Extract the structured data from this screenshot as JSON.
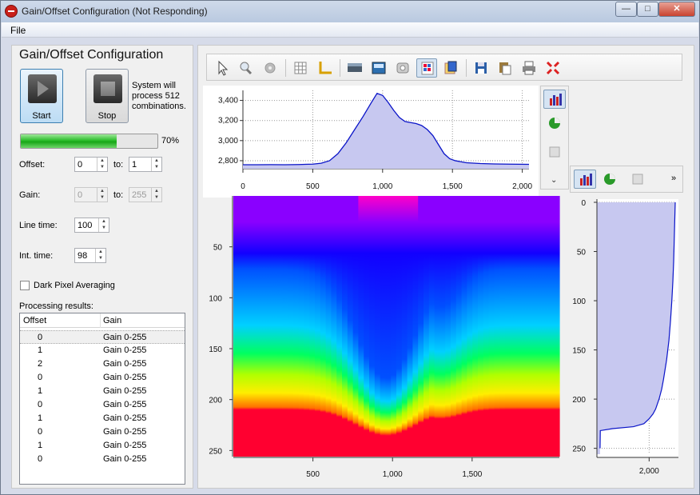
{
  "window": {
    "title": "Gain/Offset Configuration (Not Responding)",
    "min": "—",
    "max": "□",
    "close": "✕"
  },
  "menu": {
    "file": "File"
  },
  "panel": {
    "title": "Gain/Offset Configuration",
    "start_label": "Start",
    "stop_label": "Stop",
    "system_note": "System will process 512 combinations.",
    "progress_percent": 70,
    "progress_text": "70%",
    "offset_label": "Offset:",
    "offset_from": "0",
    "offset_to": "1",
    "gain_label": "Gain:",
    "gain_from": "0",
    "gain_to": "255",
    "to_label": "to:",
    "line_time_label": "Line time:",
    "line_time": "100",
    "int_time_label": "Int. time:",
    "int_time": "98",
    "dark_pixel_label": "Dark Pixel Averaging",
    "dark_pixel_checked": false,
    "results_label": "Processing results:",
    "results_columns": [
      "Offset",
      "Gain"
    ],
    "results_rows": [
      [
        "0",
        "Gain 0-255"
      ],
      [
        "1",
        "Gain 0-255"
      ],
      [
        "2",
        "Gain 0-255"
      ],
      [
        "0",
        "Gain 0-255"
      ],
      [
        "1",
        "Gain 0-255"
      ],
      [
        "0",
        "Gain 0-255"
      ],
      [
        "1",
        "Gain 0-255"
      ],
      [
        "0",
        "Gain 0-255"
      ],
      [
        "1",
        "Gain 0-255"
      ],
      [
        "0",
        "Gain 0-255"
      ]
    ]
  },
  "toolbar_icons": [
    "pointer-icon",
    "zoom-icon",
    "settings-icon",
    "grid-icon",
    "axis-icon",
    "color-scale-icon",
    "image-icon",
    "reset-icon",
    "heatmap-icon",
    "export-plot-icon",
    "save-icon",
    "copy-icon",
    "print-icon",
    "fit-icon"
  ],
  "chart_data": [
    {
      "type": "line",
      "name": "top-profile",
      "x_ticks": [
        "0",
        "500",
        "1,000",
        "1,500",
        "2,000"
      ],
      "y_ticks": [
        "3,400",
        "3,200",
        "3,000",
        "2,800"
      ],
      "xlim": [
        0,
        2048
      ],
      "ylim": [
        2720,
        3500
      ],
      "x": [
        0,
        100,
        200,
        300,
        400,
        500,
        560,
        620,
        680,
        740,
        800,
        860,
        920,
        960,
        1000,
        1040,
        1080,
        1120,
        1160,
        1200,
        1240,
        1280,
        1320,
        1360,
        1400,
        1440,
        1480,
        1520,
        1560,
        1600,
        1700,
        1800,
        1900,
        2048
      ],
      "y": [
        2760,
        2760,
        2761,
        2760,
        2762,
        2766,
        2775,
        2800,
        2870,
        2980,
        3110,
        3240,
        3380,
        3470,
        3450,
        3380,
        3300,
        3230,
        3190,
        3180,
        3170,
        3150,
        3110,
        3050,
        2960,
        2870,
        2820,
        2800,
        2790,
        2780,
        2772,
        2768,
        2766,
        2764
      ]
    },
    {
      "type": "heatmap",
      "name": "offset-gain-map",
      "x_ticks": [
        "500",
        "1,000",
        "1,500"
      ],
      "y_ticks": [
        "50",
        "100",
        "150",
        "200",
        "250"
      ],
      "xlim": [
        0,
        2048
      ],
      "ylim": [
        0,
        256
      ],
      "colormap": [
        "#ff00c8",
        "#8a00ff",
        "#1200ff",
        "#0050ff",
        "#00d0ff",
        "#00ff60",
        "#b0ff00",
        "#ffee00",
        "#ff7000",
        "#ff0030"
      ]
    },
    {
      "type": "area",
      "name": "side-profile",
      "x_ticks": [
        "2,000"
      ],
      "y_ticks": [
        "0",
        "50",
        "100",
        "150",
        "200",
        "250"
      ],
      "ylim": [
        0,
        256
      ],
      "xlim": [
        0,
        3000
      ],
      "y": [
        0,
        20,
        40,
        60,
        80,
        100,
        120,
        140,
        160,
        180,
        190,
        200,
        210,
        215,
        220,
        225,
        228,
        230,
        232,
        250
      ],
      "x": [
        3000,
        2980,
        2960,
        2940,
        2910,
        2870,
        2820,
        2760,
        2670,
        2550,
        2480,
        2380,
        2250,
        2150,
        2000,
        1800,
        1400,
        600,
        130,
        120
      ]
    }
  ]
}
